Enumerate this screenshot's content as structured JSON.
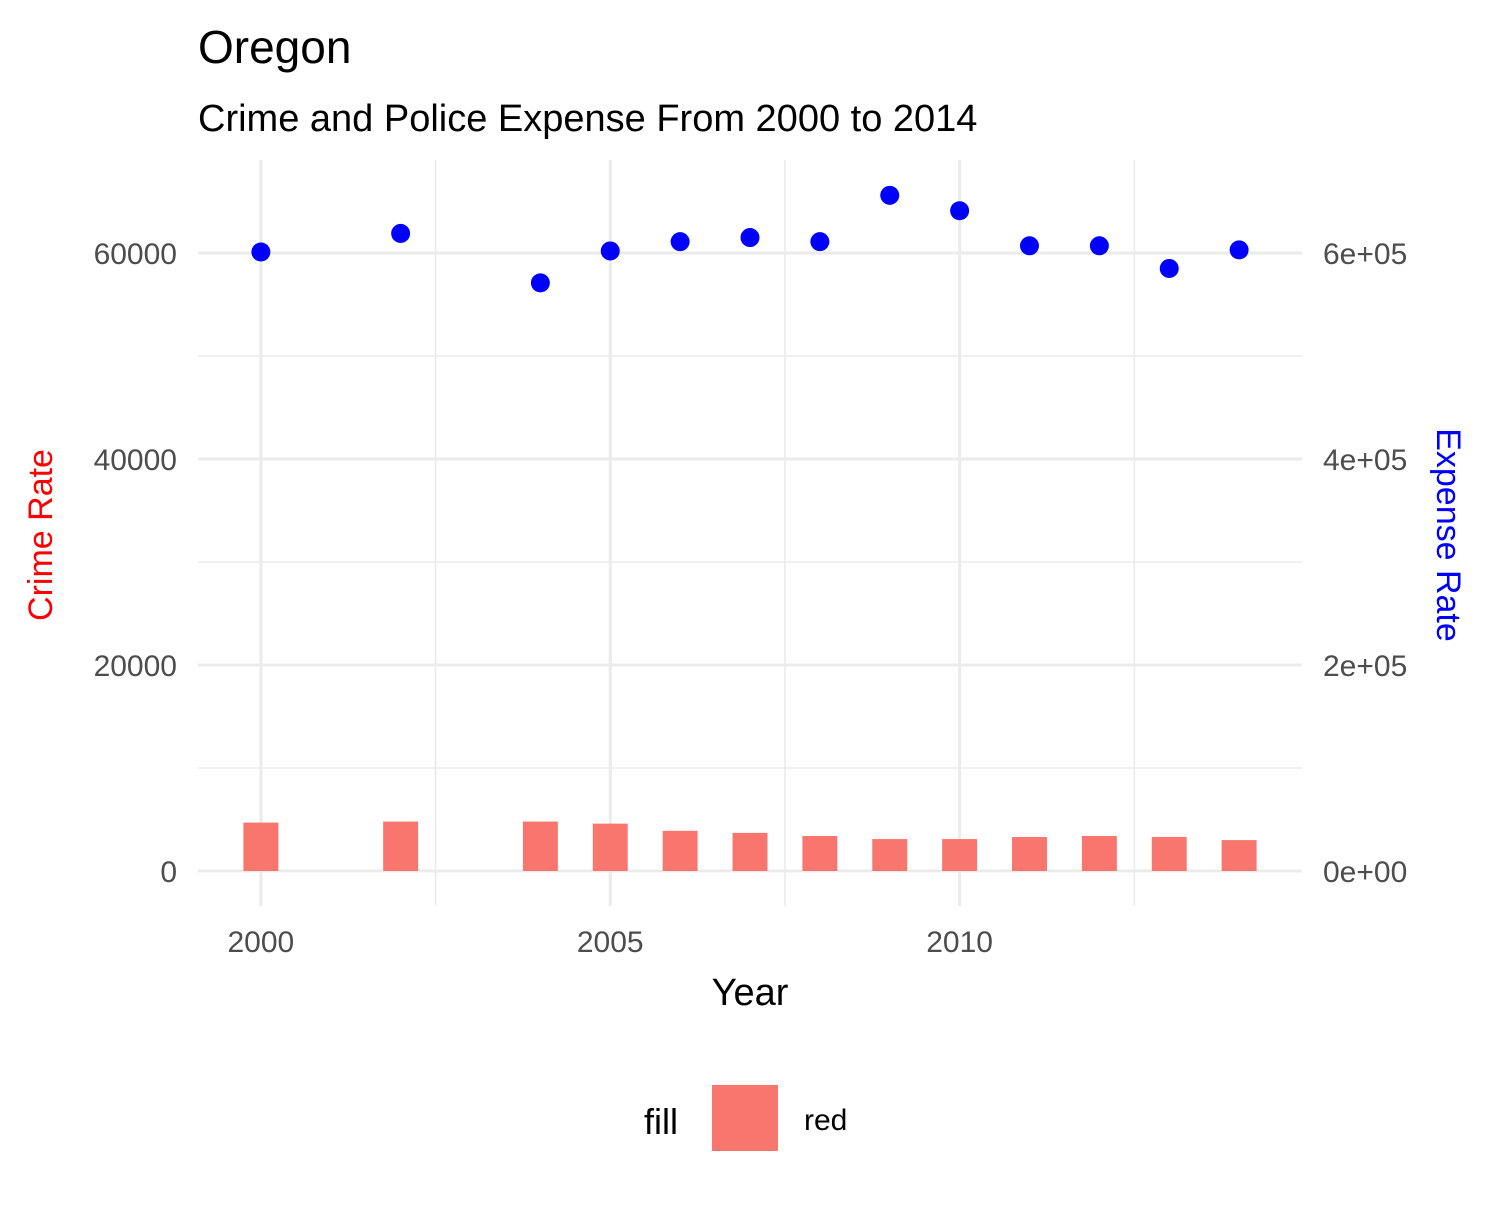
{
  "chart_data": {
    "type": "bar",
    "title": "Oregon",
    "subtitle": "Crime and Police Expense From 2000 to 2014",
    "xlabel": "Year",
    "ylabel_left": "Crime Rate",
    "ylabel_right": "Expense Rate",
    "x_ticks": [
      2000,
      2005,
      2010
    ],
    "x_range": [
      1999.1,
      2014.9
    ],
    "y_left_ticks": [
      0,
      20000,
      40000,
      60000
    ],
    "y_left_tick_labels": [
      "0",
      "20000",
      "40000",
      "60000"
    ],
    "y_left_range": [
      -3000,
      68500
    ],
    "y_right_ticks": [
      0,
      200000,
      400000,
      600000
    ],
    "y_right_tick_labels": [
      "0e+00",
      "2e+05",
      "4e+05",
      "6e+05"
    ],
    "grid": true,
    "legend": {
      "position": "bottom",
      "title": "fill",
      "entries": [
        {
          "label": "red",
          "color": "#F8766D"
        }
      ]
    },
    "series": [
      {
        "kind": "bar",
        "axis": "left",
        "color": "#F8766D",
        "x": [
          2000,
          2002,
          2004,
          2005,
          2006,
          2007,
          2008,
          2009,
          2010,
          2011,
          2012,
          2013,
          2014
        ],
        "values": [
          4700,
          4800,
          4800,
          4600,
          3900,
          3700,
          3400,
          3100,
          3100,
          3300,
          3400,
          3300,
          3000
        ]
      },
      {
        "kind": "scatter",
        "axis": "right",
        "color": "#0000FF",
        "x": [
          2000,
          2002,
          2004,
          2005,
          2006,
          2007,
          2008,
          2009,
          2010,
          2011,
          2012,
          2013,
          2014
        ],
        "values": [
          601000,
          619000,
          571000,
          602000,
          611000,
          615000,
          611000,
          656000,
          641000,
          607000,
          607000,
          585000,
          603000
        ]
      }
    ],
    "colors": {
      "left_axis_title": "#FF0000",
      "right_axis_title": "#0000FF",
      "tick_text": "#4D4D4D",
      "grid": "#EBEBEB"
    }
  }
}
